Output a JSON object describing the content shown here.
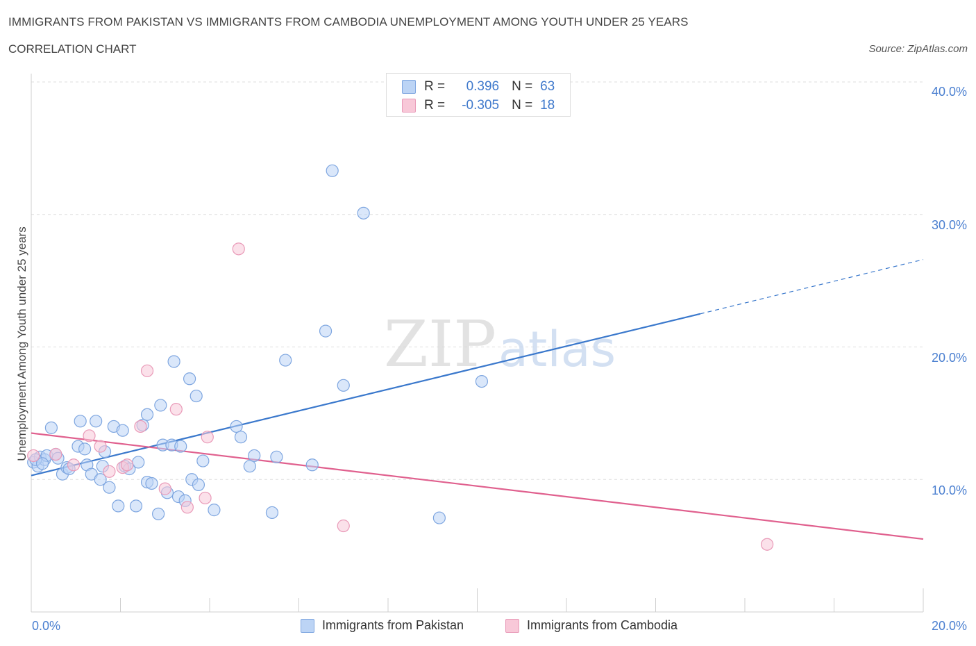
{
  "chart_data": {
    "type": "scatter",
    "title": "IMMIGRANTS FROM PAKISTAN VS IMMIGRANTS FROM CAMBODIA UNEMPLOYMENT AMONG YOUTH UNDER 25 YEARS",
    "subtitle": "CORRELATION CHART",
    "source": "Source: ZipAtlas.com",
    "watermark": "ZIPatlas",
    "xlabel": "",
    "ylabel": "Unemployment Among Youth under 25 years",
    "xlim": [
      0,
      20
    ],
    "ylim": [
      0,
      40
    ],
    "x_tick_labels": [
      "0.0%",
      "20.0%"
    ],
    "y_ticks": [
      10,
      20,
      30,
      40
    ],
    "y_tick_labels": [
      "10.0%",
      "20.0%",
      "30.0%",
      "40.0%"
    ],
    "grid": true,
    "legend_stats": [
      {
        "r_label": "R =",
        "r_value": "0.396",
        "n_label": "N =",
        "n_value": "63"
      },
      {
        "r_label": "R =",
        "r_value": "-0.305",
        "n_label": "N =",
        "n_value": "18"
      }
    ],
    "series": [
      {
        "name": "Immigrants from Pakistan",
        "color": "#7ea6e0",
        "fill": "#bcd4f5",
        "line_color": "#3a78cc",
        "trend": {
          "x0": 0,
          "y0": 10.3,
          "x1": 15.0,
          "y1": 22.5,
          "dashed_to_x": 20.0,
          "dashed_to_y": 26.6
        },
        "points": [
          [
            0.05,
            11.3
          ],
          [
            0.15,
            11.0
          ],
          [
            0.2,
            11.7
          ],
          [
            0.3,
            11.5
          ],
          [
            0.35,
            11.8
          ],
          [
            0.45,
            13.9
          ],
          [
            0.55,
            11.9
          ],
          [
            0.6,
            11.6
          ],
          [
            0.7,
            10.4
          ],
          [
            0.8,
            10.9
          ],
          [
            0.85,
            10.8
          ],
          [
            1.05,
            12.5
          ],
          [
            1.1,
            14.4
          ],
          [
            1.2,
            12.3
          ],
          [
            1.25,
            11.1
          ],
          [
            1.35,
            10.4
          ],
          [
            1.45,
            14.4
          ],
          [
            1.55,
            10.0
          ],
          [
            1.6,
            11.0
          ],
          [
            1.65,
            12.1
          ],
          [
            1.75,
            9.4
          ],
          [
            1.85,
            14.0
          ],
          [
            1.95,
            8.0
          ],
          [
            2.05,
            13.7
          ],
          [
            2.1,
            11.0
          ],
          [
            2.2,
            10.8
          ],
          [
            2.35,
            8.0
          ],
          [
            2.4,
            11.3
          ],
          [
            2.5,
            14.1
          ],
          [
            2.6,
            9.8
          ],
          [
            2.6,
            14.9
          ],
          [
            2.7,
            9.7
          ],
          [
            2.85,
            7.4
          ],
          [
            2.9,
            15.6
          ],
          [
            2.95,
            12.6
          ],
          [
            3.05,
            9.0
          ],
          [
            3.15,
            12.6
          ],
          [
            3.2,
            18.9
          ],
          [
            3.3,
            8.7
          ],
          [
            3.35,
            12.5
          ],
          [
            3.45,
            8.4
          ],
          [
            3.55,
            17.6
          ],
          [
            3.6,
            10.0
          ],
          [
            3.7,
            16.3
          ],
          [
            3.75,
            9.6
          ],
          [
            3.85,
            11.4
          ],
          [
            4.1,
            7.7
          ],
          [
            4.6,
            14.0
          ],
          [
            4.7,
            13.2
          ],
          [
            4.9,
            11.0
          ],
          [
            5.0,
            11.8
          ],
          [
            5.4,
            7.5
          ],
          [
            5.5,
            11.7
          ],
          [
            5.7,
            19.0
          ],
          [
            6.3,
            11.1
          ],
          [
            6.6,
            21.2
          ],
          [
            6.75,
            33.3
          ],
          [
            7.0,
            17.1
          ],
          [
            7.45,
            30.1
          ],
          [
            9.15,
            7.1
          ],
          [
            10.1,
            17.4
          ],
          [
            0.1,
            11.5
          ],
          [
            0.25,
            11.2
          ]
        ]
      },
      {
        "name": "Immigrants from Cambodia",
        "color": "#e99ab8",
        "fill": "#f8c8d8",
        "line_color": "#e0608e",
        "trend": {
          "x0": 0,
          "y0": 13.5,
          "x1": 20.0,
          "y1": 5.5
        },
        "points": [
          [
            0.05,
            11.8
          ],
          [
            0.55,
            11.9
          ],
          [
            0.95,
            11.1
          ],
          [
            1.3,
            13.3
          ],
          [
            1.55,
            12.5
          ],
          [
            1.75,
            10.6
          ],
          [
            2.05,
            10.9
          ],
          [
            2.15,
            11.1
          ],
          [
            2.45,
            14.0
          ],
          [
            2.6,
            18.2
          ],
          [
            3.0,
            9.3
          ],
          [
            3.25,
            15.3
          ],
          [
            3.5,
            7.9
          ],
          [
            3.9,
            8.6
          ],
          [
            3.95,
            13.2
          ],
          [
            4.65,
            27.4
          ],
          [
            7.0,
            6.5
          ],
          [
            16.5,
            5.1
          ]
        ]
      }
    ]
  }
}
